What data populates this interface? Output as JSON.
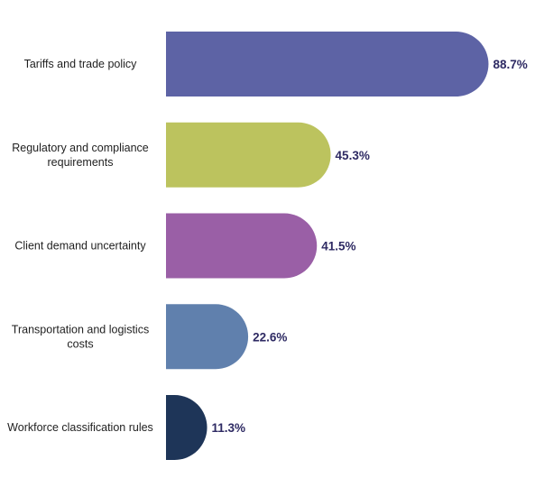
{
  "chart_data": {
    "type": "bar",
    "orientation": "horizontal",
    "categories": [
      [
        "Tariffs and trade policy"
      ],
      [
        "Regulatory and compliance",
        "requirements"
      ],
      [
        "Client demand uncertainty"
      ],
      [
        "Transportation and logistics",
        "costs"
      ],
      [
        "Workforce classification rules"
      ]
    ],
    "values": [
      88.7,
      45.3,
      41.5,
      22.6,
      11.3
    ],
    "value_labels": [
      "88.7%",
      "45.3%",
      "41.5%",
      "22.6%",
      "11.3%"
    ],
    "bar_colors": [
      "#5d63a5",
      "#bcc35e",
      "#9a5fa6",
      "#6080ad",
      "#1e3558"
    ],
    "value_label_color": "#2e2a63",
    "xlim": [
      0,
      100
    ],
    "grid": false,
    "legend": "none"
  }
}
